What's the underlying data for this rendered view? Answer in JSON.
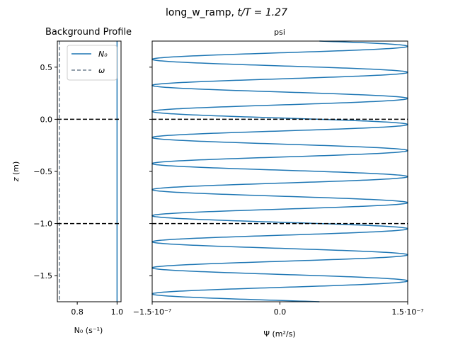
{
  "figure": {
    "suptitle_prefix": "long_w_ramp, ",
    "suptitle_math": "t/T = 1.27"
  },
  "chart_data": [
    {
      "type": "line",
      "title": "Background Profile",
      "xlabel": "N₀ (s⁻¹)",
      "ylabel": "z (m)",
      "xlim": [
        0.7,
        1.02
      ],
      "ylim": [
        -1.75,
        0.75
      ],
      "xticks": [
        0.8,
        1.0
      ],
      "xtick_labels": [
        "0.8",
        "1.0"
      ],
      "yticks": [
        0.5,
        0.0,
        -0.5,
        -1.0,
        -1.5
      ],
      "ytick_labels": [
        "0.5",
        "0.0",
        "−0.5",
        "−1.0",
        "−1.5"
      ],
      "series": [
        {
          "name": "N₀",
          "color": "#1f77b4",
          "style": "solid",
          "x_constant": 1.0
        },
        {
          "name": "ω",
          "color": "#708090",
          "style": "dashed",
          "x_constant": 0.71
        }
      ],
      "hlines": [
        {
          "y": 0.0,
          "color": "#000000",
          "style": "dashed"
        },
        {
          "y": -1.0,
          "color": "#000000",
          "style": "dashed"
        }
      ],
      "legend_position": "top-right",
      "grid": false
    },
    {
      "type": "line",
      "title": "psi",
      "xlabel": "Ψ (m²/s)",
      "ylabel": "",
      "xlim": [
        -1.5e-07,
        1.5e-07
      ],
      "ylim": [
        -1.75,
        0.75
      ],
      "xticks": [
        -1.5e-07,
        0.0,
        1.5e-07
      ],
      "xtick_labels": [
        "−1.5·10⁻⁷",
        "0.0",
        "1.5·10⁻⁷"
      ],
      "series": [
        {
          "name": "psi",
          "color": "#1f77b4",
          "style": "solid",
          "description": "sinusoid in z",
          "wavelength_m": 0.25,
          "amplitude": 1.5e-07,
          "crest_z": 0.7,
          "z_range": [
            -1.75,
            0.75
          ]
        }
      ],
      "hlines": [
        {
          "y": 0.0,
          "color": "#000000",
          "style": "dashed"
        },
        {
          "y": -1.0,
          "color": "#000000",
          "style": "dashed"
        }
      ],
      "grid": false
    }
  ]
}
